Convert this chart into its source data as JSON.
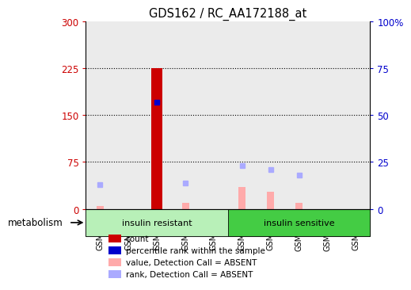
{
  "title": "GDS162 / RC_AA172188_at",
  "samples": [
    "GSM2288",
    "GSM2293",
    "GSM2298",
    "GSM2303",
    "GSM2308",
    "GSM2312",
    "GSM2317",
    "GSM2322",
    "GSM2327",
    "GSM2332"
  ],
  "groups": [
    {
      "label": "insulin resistant",
      "color": "#b8f0b8",
      "start": 0,
      "end": 4
    },
    {
      "label": "insulin sensitive",
      "color": "#44cc44",
      "start": 5,
      "end": 9
    }
  ],
  "group_label": "metabolism",
  "ylim_left": [
    0,
    300
  ],
  "ylim_right": [
    0,
    100
  ],
  "yticks_left": [
    0,
    75,
    150,
    225,
    300
  ],
  "yticks_right": [
    0,
    25,
    50,
    75,
    100
  ],
  "ytick_labels_left": [
    "0",
    "75",
    "150",
    "225",
    "300"
  ],
  "ytick_labels_right": [
    "0",
    "25",
    "50",
    "75",
    "100%"
  ],
  "count_bars": {
    "values": [
      0,
      0,
      225,
      0,
      0,
      0,
      0,
      0,
      0,
      0
    ],
    "color": "#cc0000"
  },
  "rank_markers_pct": [
    null,
    null,
    57,
    null,
    null,
    null,
    null,
    null,
    null,
    null
  ],
  "rank_color": "#0000cc",
  "absent_value_bars": [
    5,
    null,
    null,
    10,
    null,
    35,
    28,
    10,
    null,
    null
  ],
  "absent_value_color": "#ffaaaa",
  "absent_rank_pct": [
    13,
    null,
    null,
    14,
    null,
    23,
    21,
    18,
    null,
    null
  ],
  "absent_rank_color": "#aaaaff",
  "legend_items": [
    {
      "color": "#cc0000",
      "label": "count"
    },
    {
      "color": "#0000cc",
      "label": "percentile rank within the sample"
    },
    {
      "color": "#ffaaaa",
      "label": "value, Detection Call = ABSENT"
    },
    {
      "color": "#aaaaff",
      "label": "rank, Detection Call = ABSENT"
    }
  ],
  "bar_width": 0.4,
  "absent_bar_width": 0.25,
  "background_color": "#ffffff",
  "tick_color_left": "#cc0000",
  "tick_color_right": "#0000cc"
}
